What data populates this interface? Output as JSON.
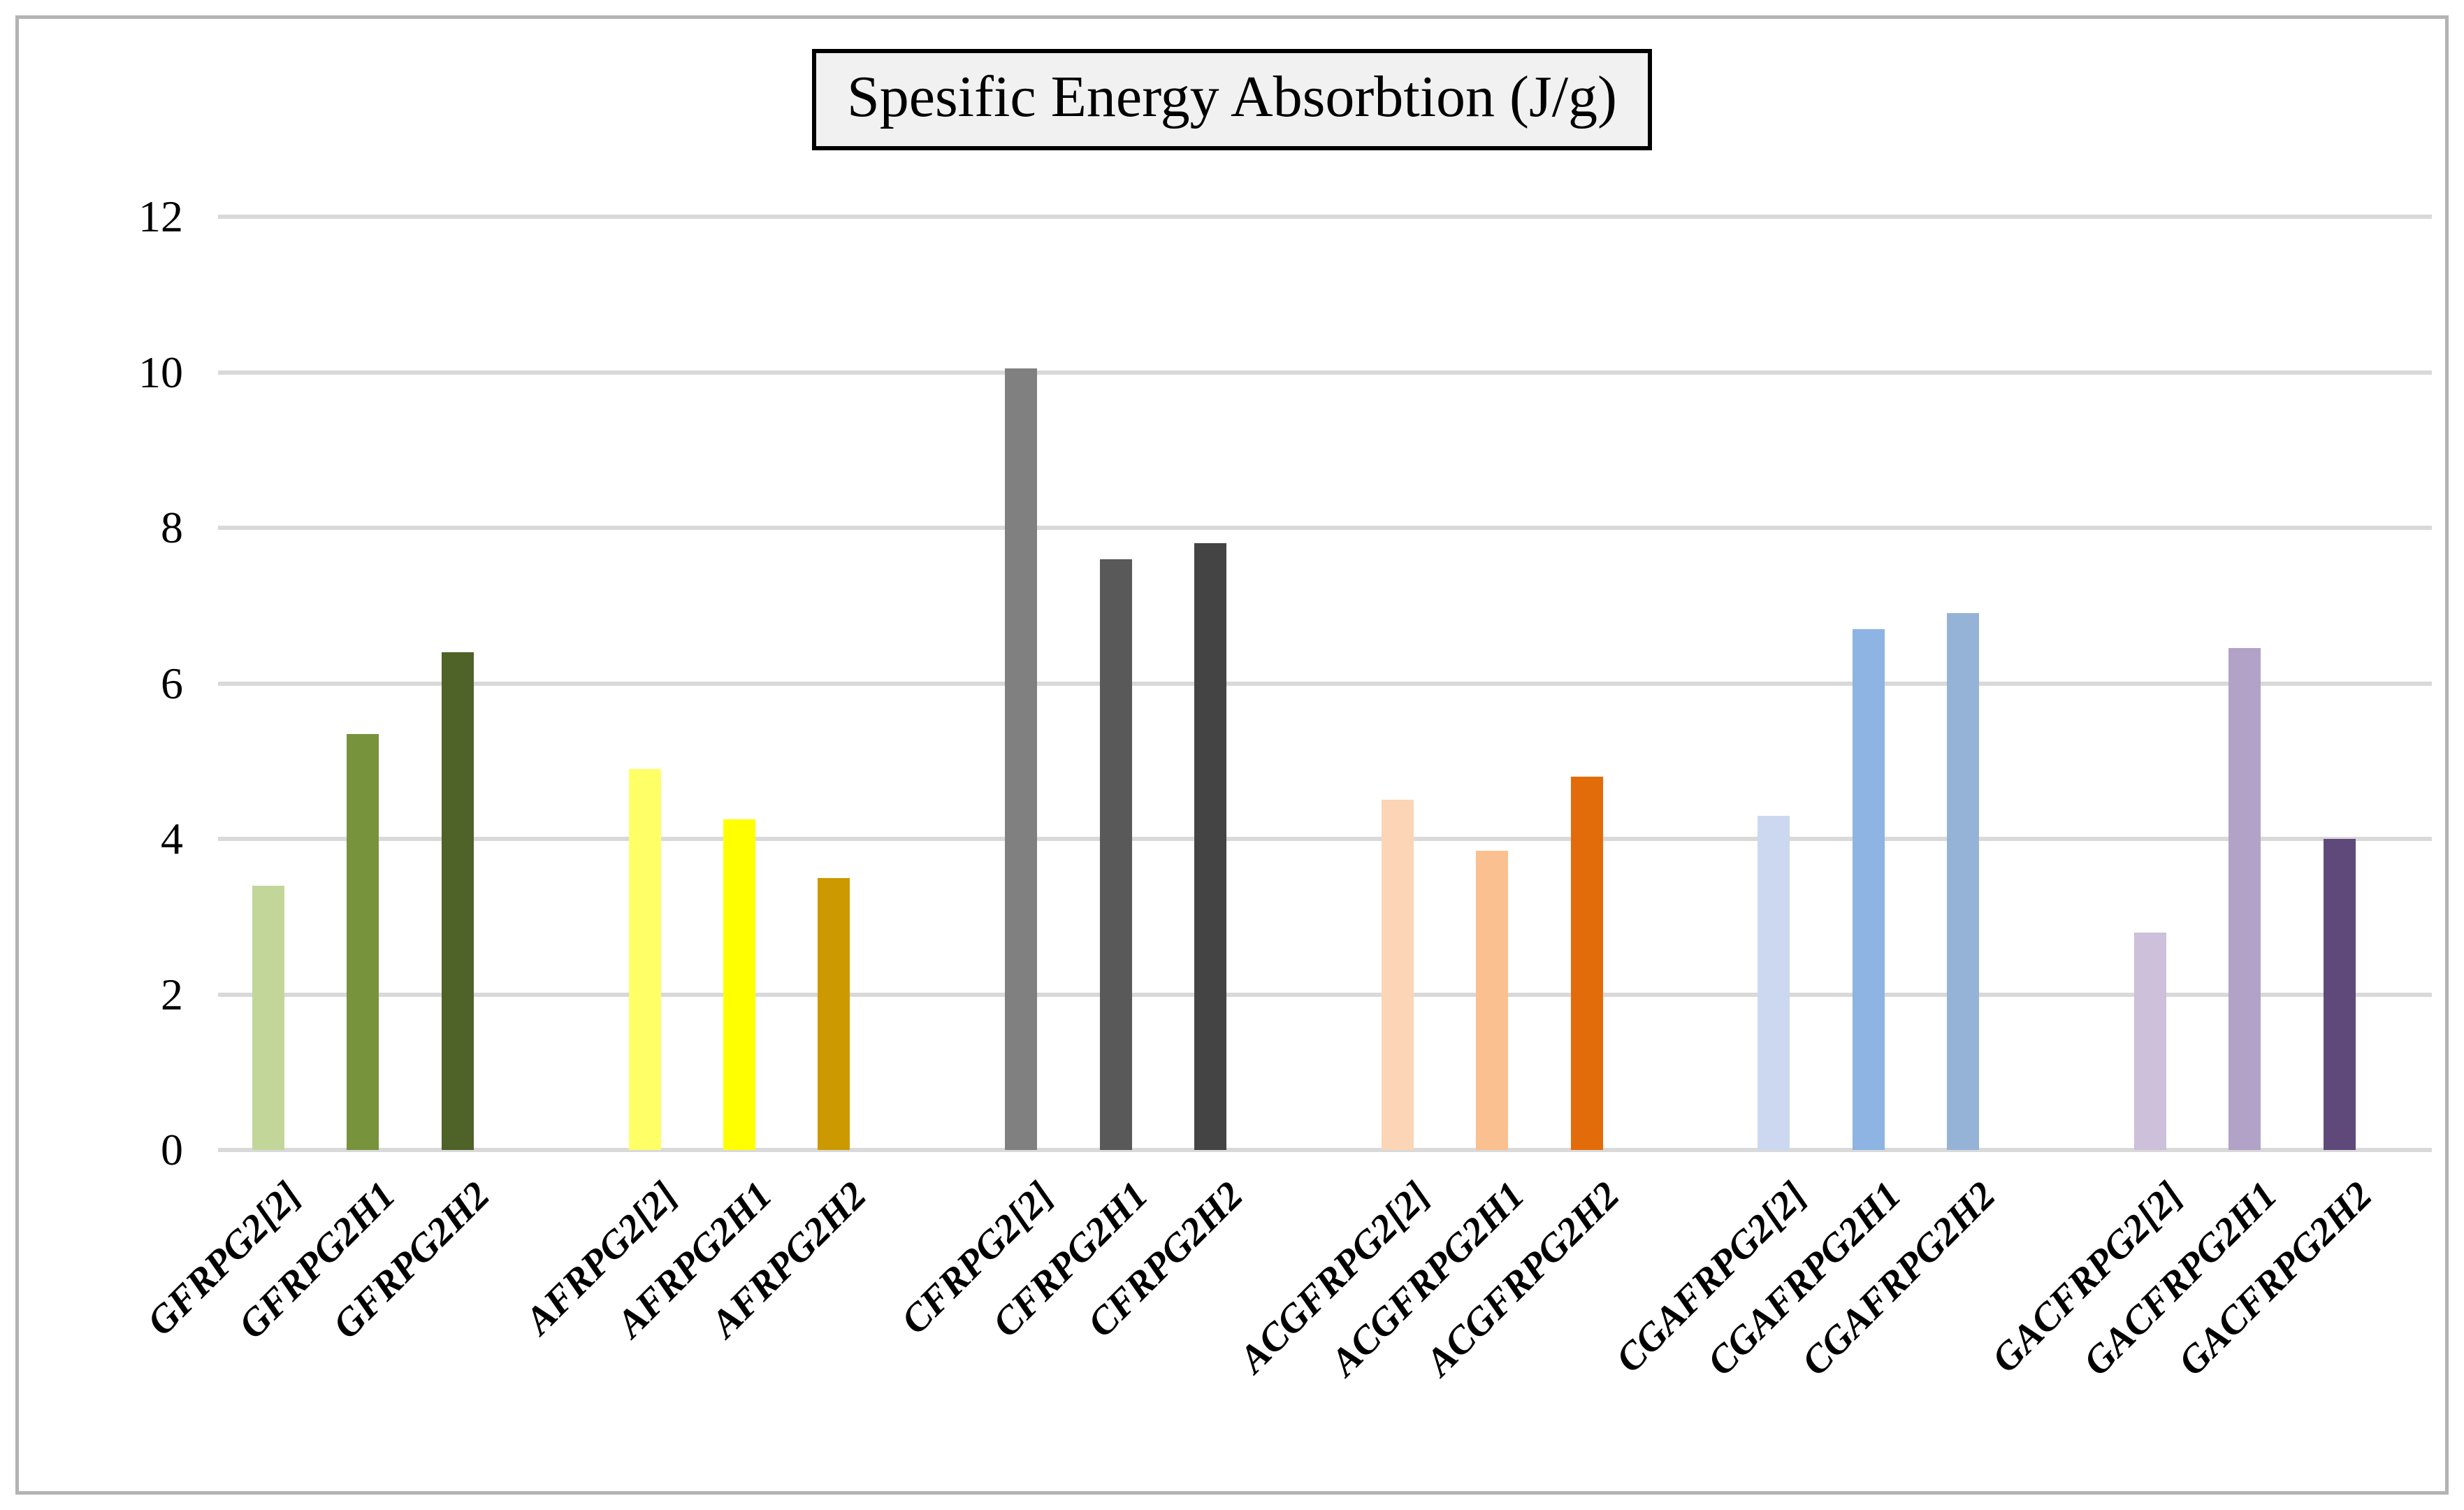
{
  "page": {
    "background": "#ffffff",
    "frame_border_color": "#b3b3b3"
  },
  "chart_data": {
    "type": "bar",
    "title": "Spesific Energy Absorbtion (J/g)",
    "categories": [
      "GFRPG2[2]",
      "GFRPG2H1",
      "GFRPG2H2",
      "AFRPG2[2]",
      "AFRPG2H1",
      "AFRPG2H2",
      "CFRPG2[2]",
      "CFRPG2H1",
      "CFRPG2H2",
      "ACGFRPG2[2]",
      "ACGFRPG2H1",
      "ACGFRPG2H2",
      "CGAFRPG2[2]",
      "CGAFRPG2H1",
      "CGAFRPG2H2",
      "GACFRPG2[2]",
      "GACFRPG2H1",
      "GACFRPG2H2"
    ],
    "series": [
      {
        "name": "Specific Energy Absorption (J/g)",
        "values": [
          3.4,
          5.35,
          6.4,
          4.9,
          4.25,
          3.5,
          10.05,
          7.6,
          7.8,
          4.5,
          3.85,
          4.8,
          4.3,
          6.7,
          6.9,
          2.8,
          6.45,
          4.0
        ]
      }
    ],
    "bar_colors": [
      "#c2d69a",
      "#77933c",
      "#4f6228",
      "#ffff66",
      "#ffff00",
      "#cc9900",
      "#808080",
      "#595959",
      "#444444",
      "#fbd5b5",
      "#fac08f",
      "#e36c0a",
      "#cbd8ef",
      "#8db4e2",
      "#95b3d7",
      "#ccc0da",
      "#b2a2c7",
      "#5f497a"
    ],
    "xlabel": "",
    "ylabel": "",
    "ylim": [
      0,
      12
    ],
    "yticks": [
      0,
      2,
      4,
      6,
      8,
      10,
      12
    ],
    "grid": "horizontal",
    "gridline_color": "#d9d9d9",
    "legend": "none",
    "groups_of": 3
  }
}
